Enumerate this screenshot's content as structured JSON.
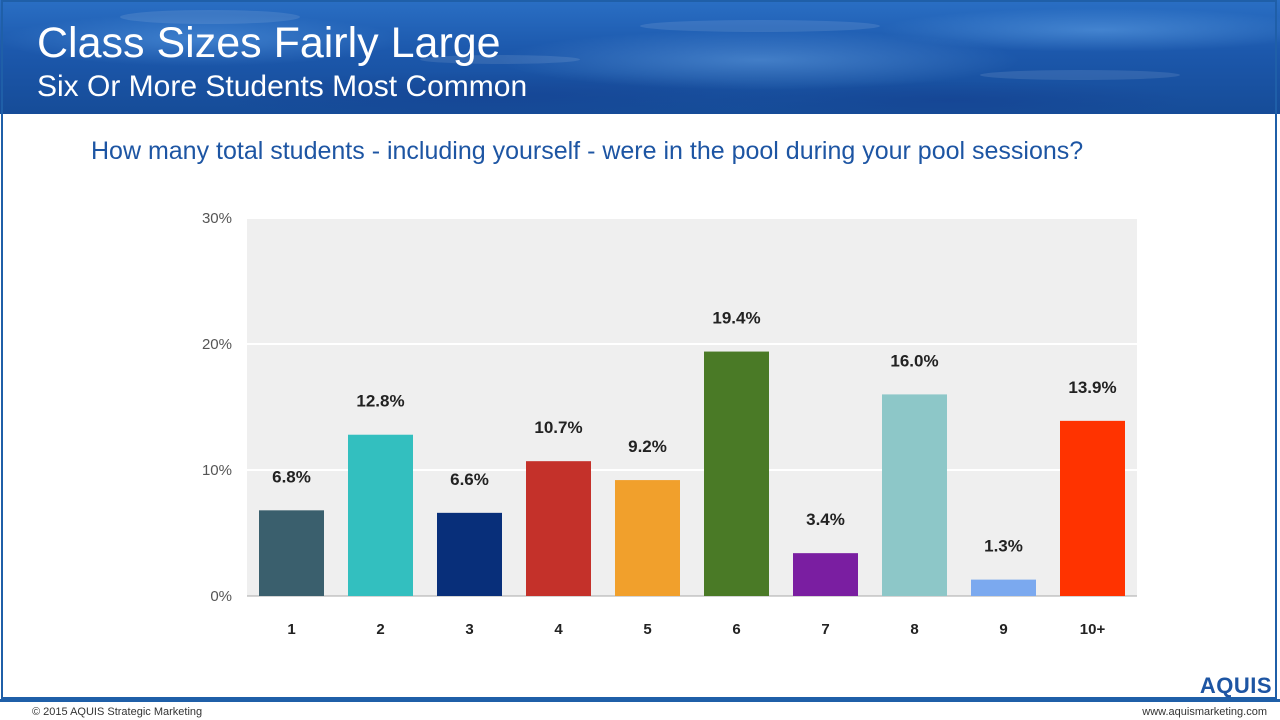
{
  "header": {
    "title": "Class Sizes Fairly Large",
    "subtitle": "Six Or More Students Most Common"
  },
  "question": "How many total students - including yourself - were in the pool during your pool sessions?",
  "chart_data": {
    "type": "bar",
    "title": "How many total students - including yourself - were in the pool during your pool sessions?",
    "xlabel": "",
    "ylabel": "",
    "categories": [
      "1",
      "2",
      "3",
      "4",
      "5",
      "6",
      "7",
      "8",
      "9",
      "10+"
    ],
    "values": [
      6.8,
      12.8,
      6.6,
      10.7,
      9.2,
      19.4,
      3.4,
      16.0,
      1.3,
      13.9
    ],
    "value_labels": [
      "6.8%",
      "12.8%",
      "6.6%",
      "10.7%",
      "9.2%",
      "19.4%",
      "3.4%",
      "16.0%",
      "1.3%",
      "13.9%"
    ],
    "colors": [
      "#3a5f6d",
      "#33bfbf",
      "#082f7a",
      "#c4312a",
      "#f1a02c",
      "#4a7a26",
      "#7a1ea1",
      "#8dc7c8",
      "#7ba9ef",
      "#ff3300"
    ],
    "ylim": [
      0,
      30
    ],
    "yticks": [
      0,
      10,
      20,
      30
    ],
    "ytick_labels": [
      "0%",
      "10%",
      "20%",
      "30%"
    ],
    "grid": true,
    "legend": "none"
  },
  "branding": {
    "logo": "AQUIS",
    "accent_color": "#1f5fa8"
  },
  "footer": {
    "copyright": "© 2015 AQUIS Strategic Marketing",
    "website": "www.aquismarketing.com"
  }
}
